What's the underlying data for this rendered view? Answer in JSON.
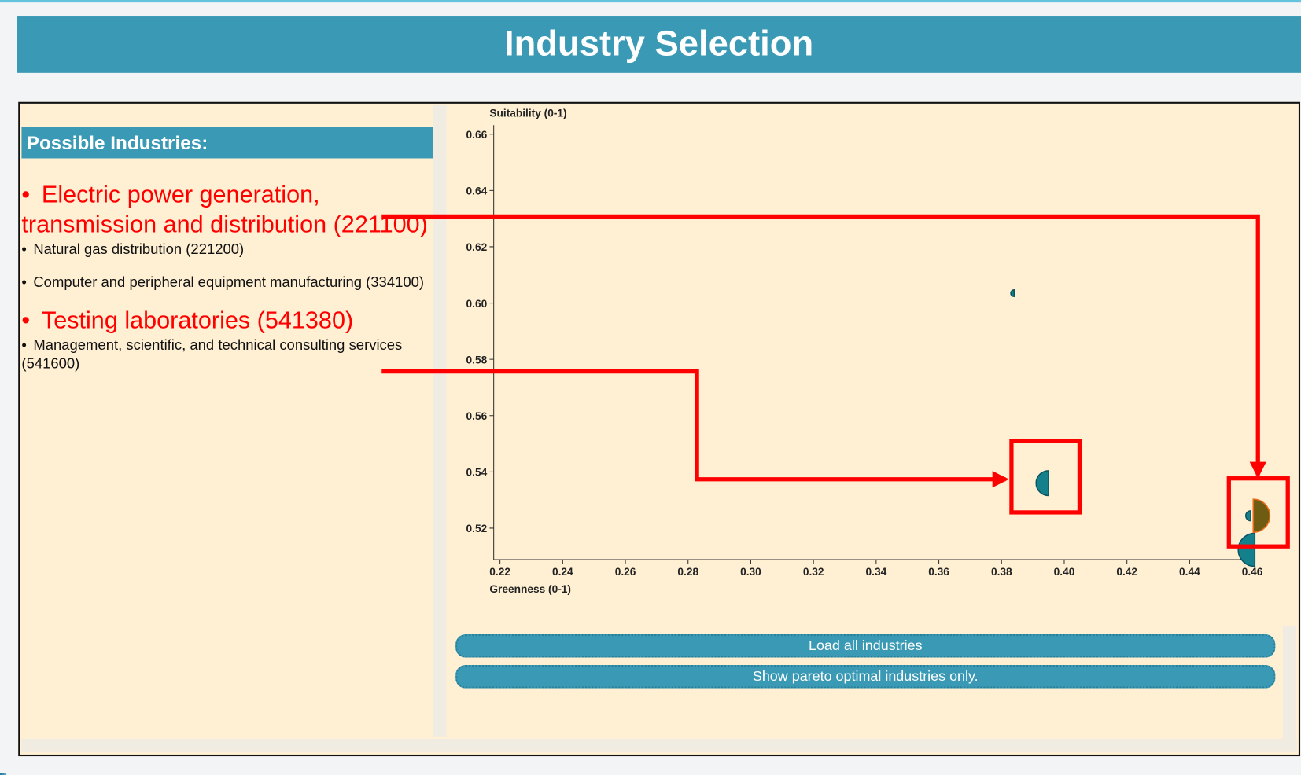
{
  "header": {
    "title": "Industry Selection"
  },
  "panel": {
    "title": "Possible Industries:",
    "industries": [
      {
        "name": "Electric power generation, transmission and distribution (221100)",
        "highlighted": true
      },
      {
        "name": "Natural gas distribution (221200)",
        "highlighted": false
      },
      {
        "name": "Computer and peripheral equipment manufacturing (334100)",
        "highlighted": false
      },
      {
        "name": "Testing laboratories (541380)",
        "highlighted": true
      },
      {
        "name": "Management, scientific, and technical consulting services (541600)",
        "highlighted": false
      }
    ]
  },
  "chart_data": {
    "type": "scatter",
    "y_label": "Suitability (0-1)",
    "x_label": "Greenness (0-1)",
    "x": [
      0.384,
      0.395,
      0.4608,
      0.4603,
      0.4595
    ],
    "values": [
      0.6035,
      0.536,
      0.5123,
      0.5244,
      0.5244
    ],
    "sizes": [
      4,
      15,
      20,
      20,
      6
    ],
    "colors": [
      "#13808c",
      "#13808c",
      "#13808c",
      "#6e5c12",
      "#13808c"
    ],
    "xlim": [
      0.218,
      0.4602
    ],
    "ylim": [
      0.5088,
      0.6632
    ],
    "xticks": [
      0.22,
      0.24,
      0.26,
      0.28,
      {
        "value": 0.3,
        "label": "0.30"
      },
      0.32,
      0.34,
      0.36,
      0.38,
      {
        "value": 0.4,
        "label": "0.40"
      },
      0.42,
      0.44,
      0.46
    ],
    "yticks": [
      0.52,
      0.54,
      0.56,
      0.58,
      {
        "value": 0.6,
        "label": "0.60"
      },
      0.62,
      0.64,
      0.66
    ]
  },
  "buttons": [
    "Load all industries",
    "Show pareto optimal industries only."
  ]
}
